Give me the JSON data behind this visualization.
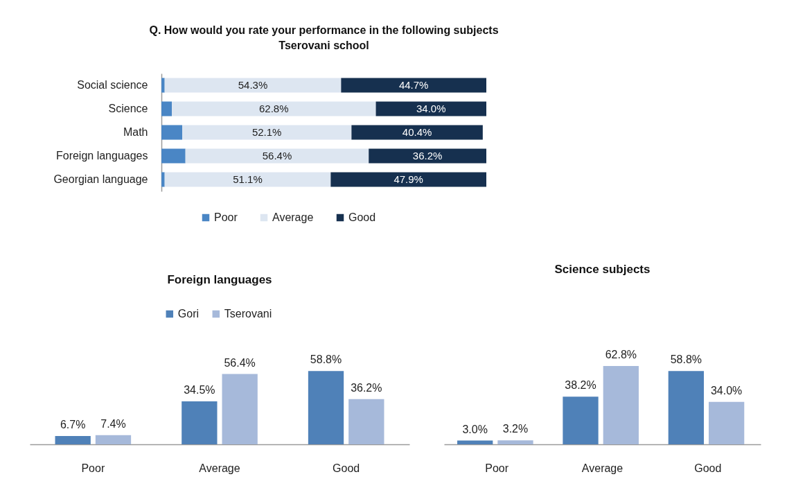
{
  "chart_data": [
    {
      "type": "bar",
      "orientation": "horizontal",
      "stacked": true,
      "title": "Q. How would you rate your performance in the following subjects",
      "subtitle": "Tserovani school",
      "categories": [
        "Social science",
        "Science",
        "Math",
        "Foreign languages",
        "Georgian language"
      ],
      "series": [
        {
          "name": "Poor",
          "color": "#4a86c5",
          "values": [
            1.0,
            3.2,
            6.4,
            7.4,
            1.0
          ]
        },
        {
          "name": "Average",
          "color": "#dde6f1",
          "values": [
            54.3,
            62.8,
            52.1,
            56.4,
            51.1
          ],
          "value_labels": [
            "54.3%",
            "62.8%",
            "52.1%",
            "56.4%",
            "51.1%"
          ]
        },
        {
          "name": "Good",
          "color": "#16304f",
          "values": [
            44.7,
            34.0,
            40.4,
            36.2,
            47.9
          ],
          "value_labels": [
            "44.7%",
            "34.0%",
            "40.4%",
            "36.2%",
            "47.9%"
          ]
        }
      ],
      "xlim": [
        0,
        100
      ],
      "tick_labels": "y",
      "legend": "bottom"
    },
    {
      "type": "bar",
      "title": "Foreign languages",
      "categories": [
        "Poor",
        "Average",
        "Good"
      ],
      "series": [
        {
          "name": "Gori",
          "color": "#4f81b8",
          "values": [
            6.7,
            34.5,
            58.8
          ],
          "value_labels": [
            "6.7%",
            "34.5%",
            "58.8%"
          ]
        },
        {
          "name": "Tserovani",
          "color": "#a6b9da",
          "values": [
            7.4,
            56.4,
            36.2
          ],
          "value_labels": [
            "7.4%",
            "56.4%",
            "36.2%"
          ]
        }
      ],
      "tick_labels": "x",
      "legend": "top"
    },
    {
      "type": "bar",
      "title": "Science subjects",
      "categories": [
        "Poor",
        "Average",
        "Good"
      ],
      "series": [
        {
          "color": "#4f81b8",
          "values": [
            3.0,
            38.2,
            58.8
          ],
          "value_labels": [
            "3.0%",
            "38.2%",
            "58.8%"
          ]
        },
        {
          "color": "#a6b9da",
          "values": [
            3.2,
            62.8,
            34.0
          ],
          "value_labels": [
            "3.2%",
            "62.8%",
            "34.0%"
          ]
        }
      ],
      "tick_labels": "x"
    }
  ]
}
